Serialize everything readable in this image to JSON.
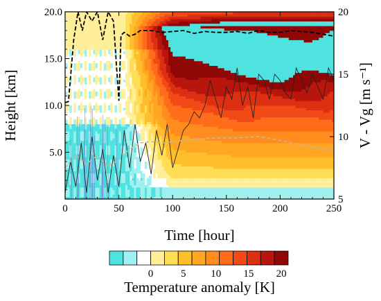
{
  "chart_data": {
    "type": "heatmap",
    "title": "",
    "xlabel": "Time [hour]",
    "ylabel": "Height [km]",
    "y2label": "V - Vg [m s⁻¹]",
    "xlim": [
      0,
      250
    ],
    "ylim": [
      0,
      20
    ],
    "y2lim": [
      5,
      20
    ],
    "xticks": [
      0,
      50,
      100,
      150,
      200,
      250
    ],
    "xtick_labels": [
      "0",
      "50",
      "100",
      "150",
      "200",
      "250"
    ],
    "yticks": [
      5,
      10,
      15,
      20
    ],
    "ytick_labels": [
      "5.0",
      "10.0",
      "15.0",
      "20.0"
    ],
    "y2ticks": [
      5,
      10,
      15,
      20
    ],
    "y2tick_labels": [
      "5",
      "10",
      "15",
      "20"
    ],
    "colorbar": {
      "label": "Temperature anomaly [K]",
      "ticks": [
        0,
        5,
        10,
        15,
        20
      ],
      "tick_labels": [
        "0",
        "5",
        "10",
        "15",
        "20"
      ],
      "levels": [
        -4.5,
        -3,
        -1.5,
        0,
        1.5,
        3,
        4.5,
        6,
        7.5,
        9,
        10.5,
        12,
        13.5,
        15,
        16.5,
        18,
        19.5,
        21
      ],
      "colors": [
        "#4fe3e0",
        "#9ff0ee",
        "#ffffff",
        "#ffef9a",
        "#ffdd55",
        "#ffbe2c",
        "#ffa722",
        "#ff8c1d",
        "#ff6d1a",
        "#f24a16",
        "#dd2f12",
        "#b8160c",
        "#8f0707"
      ]
    },
    "field_contours_k": [
      {
        "level": 1.5,
        "t": [
          70,
          90,
          120,
          150,
          200,
          250
        ],
        "z": [
          1.0,
          2.0,
          2.0,
          2.5,
          2.5,
          2.5
        ]
      },
      {
        "level": 4.5,
        "t": [
          90,
          120,
          150,
          200,
          250
        ],
        "z": [
          6.0,
          6.2,
          6.5,
          6.8,
          7.0
        ]
      },
      {
        "level": 9.0,
        "t": [
          100,
          150,
          200,
          250
        ],
        "z": [
          16.0,
          15.5,
          15.8,
          16.0
        ]
      },
      {
        "level": 15.0,
        "t": [
          80,
          150,
          250
        ],
        "z": [
          17.0,
          16.8,
          17.0
        ]
      }
    ],
    "series": [
      {
        "style": "black dashed",
        "axis": "left",
        "x": [
          0,
          3,
          5,
          8,
          12,
          16,
          20,
          25,
          30,
          35,
          40,
          45,
          50,
          52,
          55,
          60,
          65,
          70,
          80,
          90,
          100,
          110,
          120,
          130,
          140,
          150,
          160,
          170,
          180,
          190,
          200,
          210,
          220,
          230,
          240,
          250
        ],
        "y": [
          10.3,
          10.4,
          13.0,
          17.0,
          20.0,
          18.0,
          20.0,
          19.0,
          20.0,
          17.0,
          20.0,
          19.0,
          10.5,
          17.5,
          17.8,
          17.4,
          17.6,
          18.0,
          18.0,
          17.8,
          17.9,
          18.0,
          17.7,
          17.9,
          17.8,
          17.8,
          17.9,
          17.7,
          18.0,
          17.8,
          17.8,
          18.0,
          17.9,
          17.8,
          17.6,
          17.4
        ]
      },
      {
        "style": "black solid",
        "axis": "right",
        "x": [
          0,
          5,
          10,
          15,
          20,
          25,
          30,
          35,
          40,
          45,
          50,
          55,
          60,
          65,
          70,
          75,
          80,
          85,
          90,
          95,
          100,
          105,
          110,
          115,
          120,
          125,
          130,
          135,
          140,
          145,
          150,
          155,
          160,
          165,
          170,
          175,
          180,
          185,
          190,
          195,
          200,
          205,
          210,
          215,
          220,
          225,
          230,
          235,
          240,
          245,
          250
        ],
        "y": [
          5.5,
          8.0,
          6.0,
          9.5,
          5.5,
          10.0,
          6.5,
          9.0,
          5.5,
          8.5,
          6.0,
          10.5,
          7.5,
          11.0,
          8.0,
          9.5,
          7.0,
          10.5,
          8.5,
          11.0,
          7.5,
          9.0,
          10.5,
          11.0,
          12.0,
          11.5,
          12.5,
          14.5,
          13.0,
          11.5,
          14.0,
          13.0,
          15.5,
          12.5,
          14.0,
          11.5,
          15.0,
          14.5,
          13.0,
          15.0,
          14.5,
          13.5,
          13.0,
          15.5,
          14.5,
          13.5,
          15.0,
          14.0,
          13.0,
          15.5,
          14.5
        ]
      },
      {
        "style": "grey dashed",
        "axis": "right",
        "x": [
          0,
          10,
          20,
          30,
          40,
          50,
          60,
          70,
          80,
          90,
          100,
          120,
          140,
          160,
          180,
          200,
          220,
          240,
          250
        ],
        "y": [
          7.5,
          8.5,
          7.8,
          8.5,
          7.6,
          8.2,
          9.0,
          9.5,
          9.6,
          9.5,
          9.6,
          9.8,
          9.9,
          9.9,
          10.0,
          9.7,
          9.3,
          9.0,
          8.9
        ]
      }
    ],
    "legend": "none",
    "grid": false
  }
}
